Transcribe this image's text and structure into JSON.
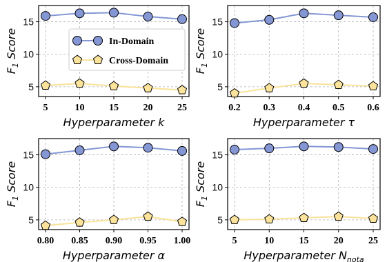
{
  "colors": {
    "in_domain_line": "#8496d4",
    "in_domain_marker": "#8496d4",
    "cross_domain_line": "#f9e29a",
    "cross_domain_marker": "#fbe39b",
    "grid": "#b0b0b0"
  },
  "legend": {
    "in_domain": "In-Domain",
    "cross_domain": "Cross-Domain",
    "placement": "upper-center of first panel"
  },
  "chart_data": [
    {
      "type": "line",
      "xlabel": "Hyperparameter k",
      "ylabel": "F1 Score",
      "categories": [
        "5",
        "10",
        "15",
        "20",
        "25"
      ],
      "x": [
        5,
        10,
        15,
        20,
        25
      ],
      "ylim": [
        3.5,
        17.5
      ],
      "yticks": [
        "5",
        "10",
        "15"
      ],
      "grid": true,
      "series": [
        {
          "name": "In-Domain",
          "marker": "circle",
          "values": [
            15.9,
            16.3,
            16.4,
            15.8,
            15.4
          ]
        },
        {
          "name": "Cross-Domain",
          "marker": "pentagon",
          "values": [
            5.2,
            5.5,
            5.1,
            4.8,
            4.5
          ]
        }
      ]
    },
    {
      "type": "line",
      "xlabel": "Hyperparameter τ",
      "ylabel": "F1 Score",
      "categories": [
        "0.2",
        "0.3",
        "0.4",
        "0.5",
        "0.6"
      ],
      "x": [
        0.2,
        0.3,
        0.4,
        0.5,
        0.6
      ],
      "ylim": [
        3.5,
        17.5
      ],
      "yticks": [
        "5",
        "10",
        "15"
      ],
      "grid": true,
      "series": [
        {
          "name": "In-Domain",
          "marker": "circle",
          "values": [
            14.8,
            15.3,
            16.3,
            16.0,
            15.7
          ]
        },
        {
          "name": "Cross-Domain",
          "marker": "pentagon",
          "values": [
            4.0,
            4.8,
            5.5,
            5.3,
            5.1
          ]
        }
      ]
    },
    {
      "type": "line",
      "xlabel": "Hyperparameter α",
      "ylabel": "F1 Score",
      "categories": [
        "0.80",
        "0.85",
        "0.90",
        "0.95",
        "1.00"
      ],
      "x": [
        0.8,
        0.85,
        0.9,
        0.95,
        1.0
      ],
      "ylim": [
        3.5,
        17.5
      ],
      "yticks": [
        "5",
        "10",
        "15"
      ],
      "grid": true,
      "series": [
        {
          "name": "In-Domain",
          "marker": "circle",
          "values": [
            15.1,
            15.7,
            16.3,
            16.1,
            15.6
          ]
        },
        {
          "name": "Cross-Domain",
          "marker": "pentagon",
          "values": [
            4.1,
            4.6,
            5.0,
            5.5,
            4.7
          ]
        }
      ]
    },
    {
      "type": "line",
      "xlabel": "Hyperparameter N",
      "xlabel_subscript": "nota",
      "ylabel": "F1 Score",
      "categories": [
        "5",
        "10",
        "15",
        "20",
        "25"
      ],
      "x": [
        5,
        10,
        15,
        20,
        25
      ],
      "ylim": [
        3.5,
        17.5
      ],
      "yticks": [
        "5",
        "10",
        "15"
      ],
      "grid": true,
      "series": [
        {
          "name": "In-Domain",
          "marker": "circle",
          "values": [
            15.8,
            16.0,
            16.3,
            16.2,
            15.9
          ]
        },
        {
          "name": "Cross-Domain",
          "marker": "pentagon",
          "values": [
            5.0,
            5.1,
            5.3,
            5.5,
            5.2
          ]
        }
      ]
    }
  ]
}
